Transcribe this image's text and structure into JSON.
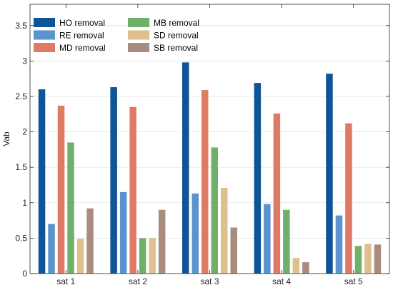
{
  "chart_data": {
    "type": "bar",
    "title": "",
    "xlabel": "",
    "ylabel": "Vab",
    "ylim": [
      0,
      3.8
    ],
    "yticks": [
      0,
      0.5,
      1,
      1.5,
      2,
      2.5,
      3,
      3.5
    ],
    "ytick_labels": [
      "0",
      "0.5",
      "1",
      "1.5",
      "2",
      "2.5",
      "3",
      "3.5"
    ],
    "grid": true,
    "legend_position": "top-left",
    "categories": [
      "sat 1",
      "sat 2",
      "sat 3",
      "sat 4",
      "sat 5"
    ],
    "series": [
      {
        "name": "HO removal",
        "color": "#0e5496",
        "values": [
          2.6,
          2.63,
          2.98,
          2.69,
          2.82
        ]
      },
      {
        "name": "RE removal",
        "color": "#5b93cc",
        "values": [
          0.7,
          1.15,
          1.13,
          0.98,
          0.82
        ]
      },
      {
        "name": "MD removal",
        "color": "#df7a66",
        "values": [
          2.37,
          2.35,
          2.59,
          2.26,
          2.12
        ]
      },
      {
        "name": "MB removal",
        "color": "#6fb06b",
        "values": [
          1.85,
          0.5,
          1.78,
          0.9,
          0.39
        ]
      },
      {
        "name": "SD removal",
        "color": "#ddc08c",
        "values": [
          0.49,
          0.5,
          1.21,
          0.22,
          0.42
        ]
      },
      {
        "name": "SB removal",
        "color": "#a98c80",
        "values": [
          0.92,
          0.9,
          0.65,
          0.16,
          0.41
        ]
      }
    ]
  }
}
